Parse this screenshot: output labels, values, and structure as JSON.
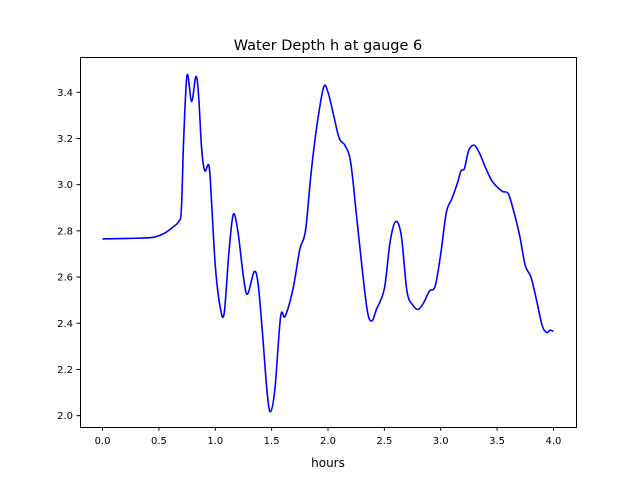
{
  "chart_data": {
    "type": "line",
    "title": "Water Depth h at gauge 6",
    "xlabel": "hours",
    "ylabel": "",
    "xlim": [
      -0.2,
      4.2
    ],
    "ylim": [
      1.95,
      3.55
    ],
    "xticks": [
      0.0,
      0.5,
      1.0,
      1.5,
      2.0,
      2.5,
      3.0,
      3.5,
      4.0
    ],
    "xtick_labels": [
      "0.0",
      "0.5",
      "1.0",
      "1.5",
      "2.0",
      "2.5",
      "3.0",
      "3.5",
      "4.0"
    ],
    "yticks": [
      2.0,
      2.2,
      2.4,
      2.6,
      2.8,
      3.0,
      3.2,
      3.4
    ],
    "ytick_labels": [
      "2.0",
      "2.2",
      "2.4",
      "2.6",
      "2.8",
      "3.0",
      "3.2",
      "3.4"
    ],
    "grid": false,
    "series": [
      {
        "name": "h",
        "color": "#0000ff",
        "x": [
          0,
          0.3,
          0.45,
          0.55,
          0.62,
          0.68,
          0.7,
          0.72,
          0.75,
          0.79,
          0.827,
          0.85,
          0.88,
          0.907,
          0.945,
          0.97,
          1.0,
          1.04,
          1.078,
          1.12,
          1.159,
          1.2,
          1.25,
          1.286,
          1.345,
          1.38,
          1.42,
          1.46,
          1.49,
          1.53,
          1.58,
          1.62,
          1.69,
          1.75,
          1.8,
          1.85,
          1.9,
          1.96,
          2.0,
          2.05,
          2.1,
          2.15,
          2.2,
          2.25,
          2.3,
          2.35,
          2.39,
          2.43,
          2.5,
          2.55,
          2.6,
          2.65,
          2.7,
          2.75,
          2.8,
          2.85,
          2.9,
          2.95,
          3.0,
          3.05,
          3.1,
          3.15,
          3.18,
          3.21,
          3.25,
          3.3,
          3.35,
          3.4,
          3.45,
          3.5,
          3.55,
          3.6,
          3.65,
          3.7,
          3.75,
          3.8,
          3.85,
          3.9,
          3.94,
          3.97,
          4.0
        ],
        "y": [
          2.765,
          2.768,
          2.772,
          2.79,
          2.815,
          2.843,
          2.9,
          3.2,
          3.474,
          3.36,
          3.467,
          3.4,
          3.15,
          3.06,
          3.08,
          2.9,
          2.65,
          2.48,
          2.44,
          2.7,
          2.87,
          2.8,
          2.6,
          2.526,
          2.623,
          2.57,
          2.35,
          2.1,
          2.017,
          2.12,
          2.43,
          2.43,
          2.55,
          2.72,
          2.8,
          3.05,
          3.25,
          3.42,
          3.4,
          3.3,
          3.2,
          3.17,
          3.1,
          2.88,
          2.65,
          2.45,
          2.41,
          2.46,
          2.55,
          2.75,
          2.84,
          2.78,
          2.54,
          2.48,
          2.46,
          2.49,
          2.54,
          2.56,
          2.7,
          2.88,
          2.94,
          3.01,
          3.06,
          3.07,
          3.15,
          3.17,
          3.13,
          3.07,
          3.02,
          2.99,
          2.97,
          2.96,
          2.88,
          2.78,
          2.65,
          2.6,
          2.5,
          2.39,
          2.36,
          2.37,
          2.365
        ]
      }
    ]
  }
}
